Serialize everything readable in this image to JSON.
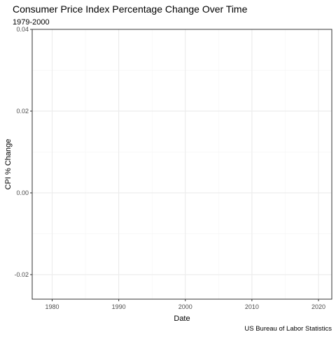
{
  "chart_data": {
    "type": "line",
    "title": "Consumer Price Index Percentage Change Over Time",
    "subtitle": "1979-2000",
    "caption": "US Bureau of Labor Statistics",
    "xlabel": "Date",
    "ylabel": "CPI % Change",
    "xlim": [
      1977,
      2022
    ],
    "ylim": [
      -0.026,
      0.04
    ],
    "x_ticks": [
      1980,
      1990,
      2000,
      2010,
      2020
    ],
    "x_tick_labels": [
      "1980",
      "1990",
      "2000",
      "2010",
      "2020"
    ],
    "y_ticks": [
      -0.02,
      0.0,
      0.02,
      0.04
    ],
    "y_tick_labels": [
      "-0.02",
      "0.00",
      "0.02",
      "0.04"
    ],
    "x_minor_ticks": [
      1985,
      1995,
      2005,
      2015
    ],
    "y_minor_ticks": [
      -0.01,
      0.01,
      0.03
    ],
    "grid": true,
    "series": [],
    "colors": {
      "background": "#ffffff",
      "panel_border": "#333333",
      "grid_major": "#ebebeb",
      "grid_minor": "#f5f5f5",
      "text": "#000000",
      "tick_text": "#4d4d4d"
    }
  }
}
